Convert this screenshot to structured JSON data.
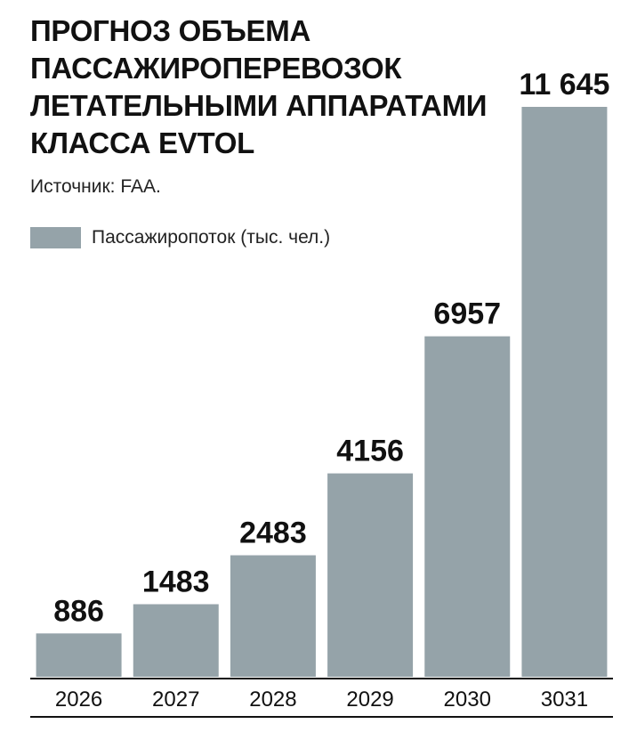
{
  "title_lines": [
    "ПРОГНОЗ ОБЪЕМА",
    "ПАССАЖИРОПЕРЕВОЗОК",
    "ЛЕТАТЕЛЬНЫМИ АППАРАТАМИ",
    "КЛАССА EVTOL"
  ],
  "source": "Источник: FAA.",
  "chart_data": {
    "type": "bar",
    "title": "ПРОГНОЗ ОБЪЕМА ПАССАЖИРОПЕРЕВОЗОК ЛЕТАТЕЛЬНЫМИ АППАРАТАМИ КЛАССА EVTOL",
    "categories": [
      "2026",
      "2027",
      "2028",
      "2029",
      "2030",
      "3031"
    ],
    "series": [
      {
        "name": "Пассажиропоток (тыс. чел.)",
        "values": [
          886,
          1483,
          2483,
          4156,
          6957,
          11645
        ],
        "labels": [
          "886",
          "1483",
          "2483",
          "4156",
          "6957",
          "11 645"
        ],
        "color": "#95a3a9"
      }
    ],
    "ylim": [
      0,
      11645
    ],
    "grid": false,
    "legend_position": "top-left"
  }
}
